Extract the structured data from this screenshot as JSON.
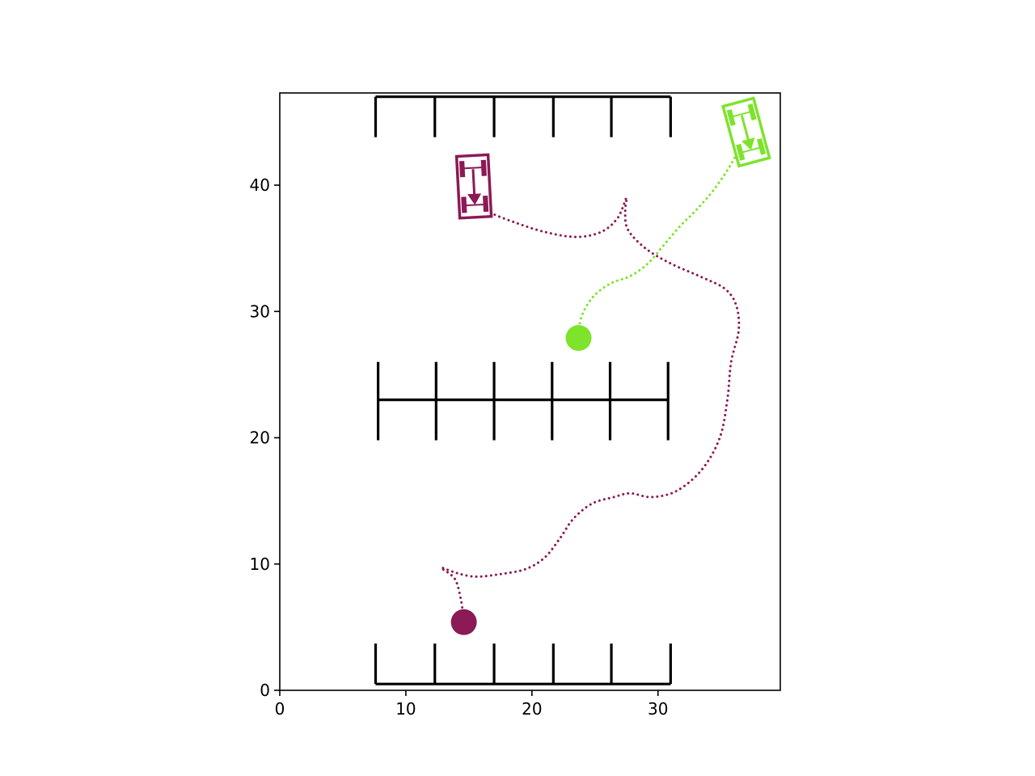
{
  "chart_data": {
    "type": "scatter",
    "title": "",
    "xlabel": "",
    "ylabel": "",
    "xlim": [
      0,
      39.7
    ],
    "ylim": [
      0,
      47.3
    ],
    "aspect": "equal",
    "grid": false,
    "legend": "none",
    "xticks": [
      0,
      10,
      20,
      30
    ],
    "yticks": [
      0,
      10,
      20,
      30,
      40
    ],
    "parking_lots": [
      {
        "name": "top-parking-row",
        "base_y": 47.0,
        "stall_end_y": 43.8,
        "dividers_x": [
          7.6,
          12.3,
          17.0,
          21.7,
          26.3,
          31.0
        ]
      },
      {
        "name": "middle-parking-row",
        "base_y": 23.0,
        "top_y": 26.0,
        "bottom_y": 19.8,
        "dividers_x": [
          7.8,
          12.4,
          17.0,
          21.6,
          26.2,
          30.8
        ]
      },
      {
        "name": "bottom-parking-row",
        "base_y": 0.5,
        "stall_end_y": 3.7,
        "dividers_x": [
          7.6,
          12.3,
          17.0,
          21.7,
          26.3,
          31.0
        ]
      }
    ],
    "series": [
      {
        "color": "#8b1a56",
        "start": [
          14.6,
          5.4
        ],
        "vehicle": {
          "x": 15.4,
          "y": 39.9,
          "heading_deg": -87,
          "length": 4.9,
          "width": 2.5
        },
        "path": [
          [
            14.6,
            5.4
          ],
          [
            14.4,
            7.0
          ],
          [
            13.9,
            8.8
          ],
          [
            12.8,
            9.7
          ],
          [
            14.0,
            9.3
          ],
          [
            15.5,
            9.0
          ],
          [
            17.5,
            9.2
          ],
          [
            19.5,
            9.6
          ],
          [
            21.0,
            10.5
          ],
          [
            22.2,
            12.0
          ],
          [
            23.3,
            13.6
          ],
          [
            24.8,
            14.8
          ],
          [
            26.5,
            15.3
          ],
          [
            27.8,
            15.6
          ],
          [
            29.5,
            15.3
          ],
          [
            31.5,
            15.8
          ],
          [
            33.5,
            17.5
          ],
          [
            34.9,
            20.0
          ],
          [
            35.5,
            23.0
          ],
          [
            35.8,
            26.0
          ],
          [
            36.4,
            28.5
          ],
          [
            36.2,
            30.5
          ],
          [
            35.3,
            31.8
          ],
          [
            33.5,
            32.7
          ],
          [
            31.0,
            33.8
          ],
          [
            29.0,
            35.0
          ],
          [
            27.6,
            36.5
          ],
          [
            27.4,
            38.0
          ],
          [
            27.5,
            39.0
          ],
          [
            26.8,
            37.4
          ],
          [
            25.5,
            36.3
          ],
          [
            23.5,
            35.9
          ],
          [
            21.0,
            36.3
          ],
          [
            18.5,
            37.1
          ],
          [
            16.5,
            37.9
          ],
          [
            15.8,
            38.4
          ]
        ]
      },
      {
        "color": "#7de32b",
        "start": [
          23.7,
          27.9
        ],
        "vehicle": {
          "x": 37.0,
          "y": 44.2,
          "heading_deg": -75,
          "length": 4.9,
          "width": 2.5
        },
        "path": [
          [
            23.7,
            27.9
          ],
          [
            23.9,
            29.5
          ],
          [
            24.8,
            31.1
          ],
          [
            26.2,
            32.2
          ],
          [
            27.8,
            32.8
          ],
          [
            29.2,
            33.8
          ],
          [
            30.5,
            35.3
          ],
          [
            31.7,
            36.7
          ],
          [
            33.0,
            38.0
          ],
          [
            34.4,
            39.6
          ],
          [
            35.7,
            41.5
          ],
          [
            36.5,
            43.0
          ]
        ]
      }
    ]
  }
}
